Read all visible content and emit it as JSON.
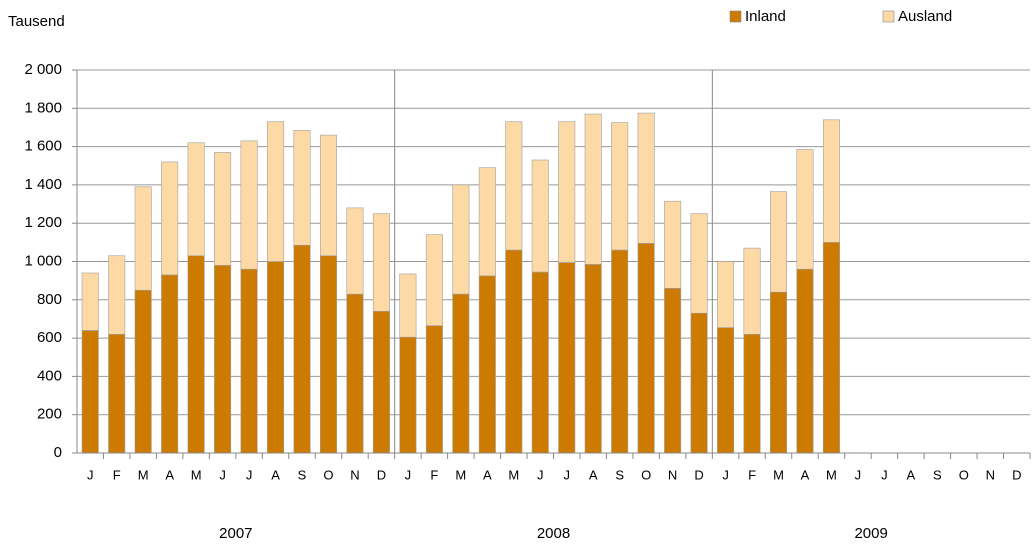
{
  "chart_data": {
    "type": "stacked-bar",
    "y_label": "Tausend",
    "categories": [
      "J",
      "F",
      "M",
      "A",
      "M",
      "J",
      "J",
      "A",
      "S",
      "O",
      "N",
      "D",
      "J",
      "F",
      "M",
      "A",
      "M",
      "J",
      "J",
      "A",
      "S",
      "O",
      "N",
      "D",
      "J",
      "F",
      "M",
      "A",
      "M",
      "J",
      "J",
      "A",
      "S",
      "O",
      "N",
      "D"
    ],
    "year_labels": [
      "2007",
      "2008",
      "2009"
    ],
    "series": [
      {
        "name": "Inland",
        "color": "#cc7a00",
        "values": [
          640,
          620,
          850,
          930,
          1030,
          980,
          960,
          1000,
          1085,
          1030,
          830,
          740,
          605,
          665,
          830,
          925,
          1060,
          945,
          995,
          985,
          1060,
          1095,
          860,
          730,
          655,
          620,
          840,
          960,
          1100,
          null,
          null,
          null,
          null,
          null,
          null,
          null
        ]
      },
      {
        "name": "Ausland",
        "color": "#fdd9a6",
        "values": [
          300,
          410,
          540,
          590,
          590,
          590,
          670,
          730,
          600,
          630,
          450,
          510,
          330,
          475,
          570,
          565,
          670,
          585,
          735,
          785,
          665,
          680,
          455,
          520,
          345,
          450,
          525,
          625,
          640,
          null,
          null,
          null,
          null,
          null,
          null,
          null
        ]
      }
    ],
    "ylim": [
      0,
      2000
    ],
    "yticks": [
      0,
      200,
      400,
      600,
      800,
      {
        "value": 1000,
        "label": "1 000"
      },
      {
        "value": 1200,
        "label": "1 200"
      },
      {
        "value": 1400,
        "label": "1 400"
      },
      {
        "value": 1600,
        "label": "1 600"
      },
      {
        "value": 1800,
        "label": "1 800"
      },
      {
        "value": 2000,
        "label": "2 000"
      }
    ],
    "grid": true
  }
}
